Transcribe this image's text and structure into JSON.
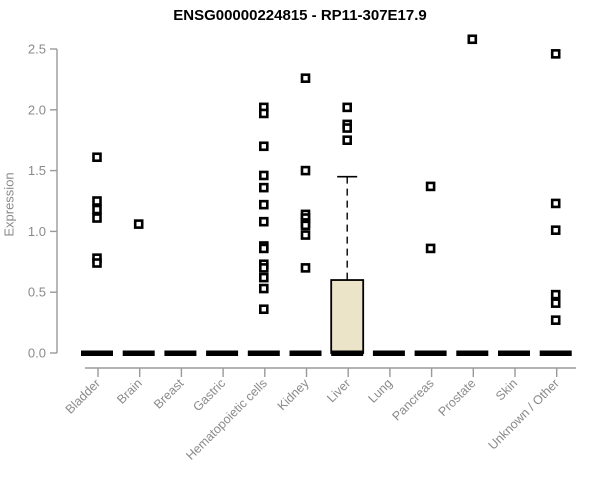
{
  "chart_data": {
    "type": "boxplot",
    "title": "ENSG00000224815 - RP11-307E17.9",
    "ylabel": "Expression",
    "xlabel": "",
    "ylim": [
      0,
      2.5
    ],
    "ytick_labels": [
      "0.0",
      "0.5",
      "1.0",
      "1.5",
      "2.0",
      "2.5"
    ],
    "ytick_values": [
      0,
      0.5,
      1,
      1.5,
      2,
      2.5
    ],
    "grid": "off",
    "legend": "none",
    "categories": [
      "Bladder",
      "Brain",
      "Breast",
      "Gastric",
      "Hematopoietic cells",
      "Kidney",
      "Liver",
      "Lung",
      "Pancreas",
      "Prostate",
      "Skin",
      "Unknown / Other"
    ],
    "boxes": [
      {
        "category": "Bladder",
        "median": 0,
        "q1": 0,
        "q3": 0,
        "whisker_low": 0,
        "whisker_high": 0,
        "outliers": [
          1.61,
          1.25,
          1.18,
          1.11,
          0.78,
          0.74
        ]
      },
      {
        "category": "Brain",
        "median": 0,
        "q1": 0,
        "q3": 0,
        "whisker_low": 0,
        "whisker_high": 0,
        "outliers": [
          1.06
        ]
      },
      {
        "category": "Breast",
        "median": 0,
        "q1": 0,
        "q3": 0,
        "whisker_low": 0,
        "whisker_high": 0,
        "outliers": []
      },
      {
        "category": "Gastric",
        "median": 0,
        "q1": 0,
        "q3": 0,
        "whisker_low": 0,
        "whisker_high": 0,
        "outliers": []
      },
      {
        "category": "Hematopoietic cells",
        "median": 0,
        "q1": 0,
        "q3": 0,
        "whisker_low": 0,
        "whisker_high": 0,
        "outliers": [
          2.02,
          1.97,
          1.7,
          1.46,
          1.36,
          1.22,
          1.08,
          0.88,
          0.86,
          0.73,
          0.7,
          0.62,
          0.53,
          0.36
        ]
      },
      {
        "category": "Kidney",
        "median": 0,
        "q1": 0,
        "q3": 0,
        "whisker_low": 0,
        "whisker_high": 0,
        "outliers": [
          2.26,
          1.5,
          1.14,
          1.11,
          1.07,
          1.05,
          0.97,
          0.7
        ]
      },
      {
        "category": "Liver",
        "median": 0,
        "q1": 0,
        "q3": 0.6,
        "whisker_low": 0,
        "whisker_high": 1.45,
        "outliers": [
          2.02,
          1.88,
          1.85,
          1.75
        ]
      },
      {
        "category": "Lung",
        "median": 0,
        "q1": 0,
        "q3": 0,
        "whisker_low": 0,
        "whisker_high": 0,
        "outliers": []
      },
      {
        "category": "Pancreas",
        "median": 0,
        "q1": 0,
        "q3": 0,
        "whisker_low": 0,
        "whisker_high": 0,
        "outliers": [
          1.37,
          0.86
        ]
      },
      {
        "category": "Prostate",
        "median": 0,
        "q1": 0,
        "q3": 0,
        "whisker_low": 0,
        "whisker_high": 0,
        "outliers": [
          2.58
        ]
      },
      {
        "category": "Skin",
        "median": 0,
        "q1": 0,
        "q3": 0,
        "whisker_low": 0,
        "whisker_high": 0,
        "outliers": []
      },
      {
        "category": "Unknown / Other",
        "median": 0,
        "q1": 0,
        "q3": 0,
        "whisker_low": 0,
        "whisker_high": 0,
        "outliers": [
          2.46,
          1.23,
          1.01,
          0.48,
          0.41,
          0.27
        ]
      }
    ],
    "colors": {
      "box_fill": "#ece4c9",
      "box_border": "#000000",
      "median": "#000000",
      "whisker": "#000000",
      "point": "#000000",
      "point_center": "#ffffff",
      "axis": "#9a9a9a",
      "tick_text": "#8a8a8a",
      "title_text": "#000000",
      "background": "#ffffff"
    }
  }
}
